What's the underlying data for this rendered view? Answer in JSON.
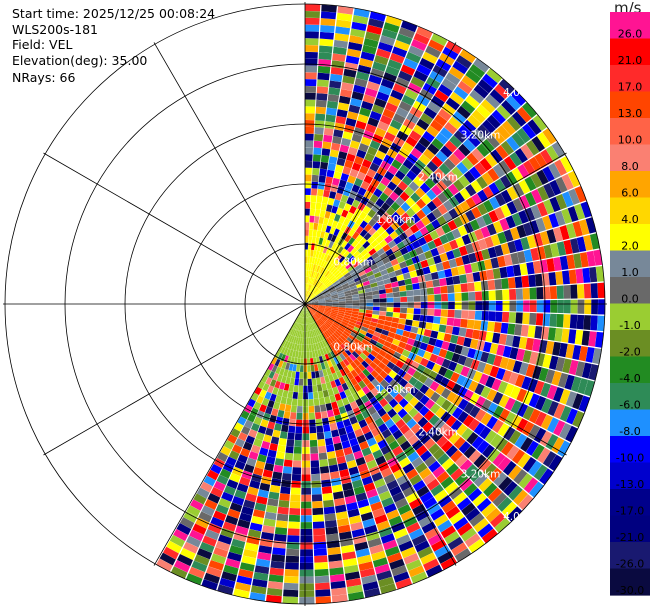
{
  "header": {
    "start_time": "Start time: 2025/12/25 00:08:24",
    "instrument": "WLS200s-181",
    "field": "Field: VEL",
    "elevation": "Elevation(deg): 35.00",
    "nrays": "NRays: 66"
  },
  "colorbar": {
    "unit": "m/s",
    "levels": [
      {
        "label": "26.0",
        "color": "#ff1493"
      },
      {
        "label": "21.0",
        "color": "#ff0000"
      },
      {
        "label": "17.0",
        "color": "#ff2a2a"
      },
      {
        "label": "13.0",
        "color": "#ff4500"
      },
      {
        "label": "10.0",
        "color": "#ff6347"
      },
      {
        "label": "8.0",
        "color": "#fa8072"
      },
      {
        "label": "6.0",
        "color": "#ffa500"
      },
      {
        "label": "4.0",
        "color": "#ffd700"
      },
      {
        "label": "2.0",
        "color": "#ffff00"
      },
      {
        "label": "1.0",
        "color": "#778899"
      },
      {
        "label": "0.0",
        "color": "#696969"
      },
      {
        "label": "-1.0",
        "color": "#9acd32"
      },
      {
        "label": "-2.0",
        "color": "#6b8e23"
      },
      {
        "label": "-4.0",
        "color": "#228b22"
      },
      {
        "label": "-6.0",
        "color": "#2e8b57"
      },
      {
        "label": "-8.0",
        "color": "#1e90ff"
      },
      {
        "label": "-10.0",
        "color": "#0000ff"
      },
      {
        "label": "-13.0",
        "color": "#0000cd"
      },
      {
        "label": "-17.0",
        "color": "#00008b"
      },
      {
        "label": "-21.0",
        "color": "#000080"
      },
      {
        "label": "-26.0",
        "color": "#191970"
      },
      {
        "label": "-30.0",
        "color": "#0a0a40"
      }
    ]
  },
  "chart_data": {
    "type": "heatmap",
    "projection": "polar PPI",
    "field": "VEL",
    "unit": "m/s",
    "nrays": 66,
    "azimuth_range_deg": [
      0,
      210
    ],
    "range_rings_km": [
      0.8,
      1.6,
      2.4,
      3.2,
      4.0
    ],
    "range_ring_labels": [
      "0.80km",
      "1.60km",
      "2.40km",
      "3.20km",
      "4.00km"
    ],
    "spoke_interval_deg": 30,
    "max_range_km": 4.0,
    "near_field_pattern": [
      {
        "sector": "north-east",
        "value_ms": 2.0
      },
      {
        "sector": "east",
        "value_ms": 0.0
      },
      {
        "sector": "south",
        "value_ms": -1.0
      },
      {
        "sector": "south-east",
        "value_ms": 13.0
      }
    ],
    "far_field": "noisy, full colour range -30.0 to 26.0 m/s"
  }
}
